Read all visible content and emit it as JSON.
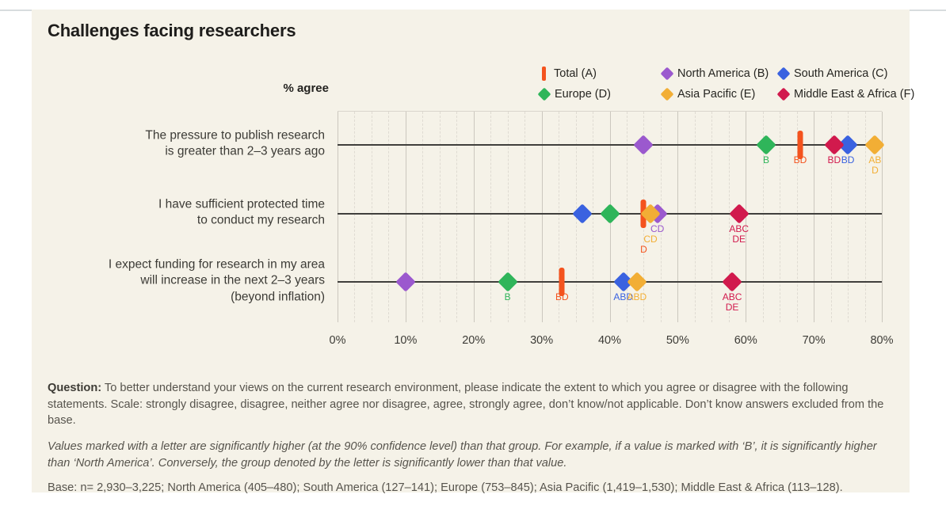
{
  "title": "Challenges facing researchers",
  "axis_label": "% agree",
  "colors": {
    "page_bg": "#ffffff",
    "card_bg": "#f5f2e8",
    "top_rule": "#d8dcde",
    "row_line": "#403f3c",
    "grid_solid": "#cbc7be",
    "grid_dashed": "#dfdbd2",
    "total": "#f4531e",
    "north_america": "#9b59ce",
    "south_america": "#3a62e0",
    "europe": "#2fb55a",
    "asia_pacific": "#f2ae35",
    "middle_east_africa": "#d11a4d"
  },
  "legend": [
    {
      "label": "Total (A)",
      "marker": "bar",
      "color": "#f4531e"
    },
    {
      "label": "North America (B)",
      "marker": "diamond",
      "color": "#9b59ce"
    },
    {
      "label": "South America (C)",
      "marker": "diamond",
      "color": "#3a62e0"
    },
    {
      "label": "Europe (D)",
      "marker": "diamond",
      "color": "#2fb55a"
    },
    {
      "label": "Asia Pacific (E)",
      "marker": "diamond",
      "color": "#f2ae35"
    },
    {
      "label": "Middle East & Africa (F)",
      "marker": "diamond",
      "color": "#d11a4d"
    }
  ],
  "chart_data": {
    "type": "scatter",
    "subtype": "dot-plot",
    "title": "Challenges facing researchers",
    "xlabel": "% agree",
    "xlim": [
      0,
      80
    ],
    "x_ticks": [
      "0%",
      "10%",
      "20%",
      "30%",
      "40%",
      "50%",
      "60%",
      "70%",
      "80%"
    ],
    "grid": "vertical, dashed every 2.5, solid every 10",
    "legend_position": "top-right",
    "categories": [
      "The pressure to publish research\nis greater than 2–3 years ago",
      "I have sufficient protected time\nto conduct my research",
      "I expect funding for research in my area\nwill increase in the next 2–3 years\n(beyond inflation)"
    ],
    "series": [
      {
        "name": "Total (A)",
        "marker": "bar",
        "color": "#f4531e",
        "values": [
          68,
          45,
          33
        ],
        "sig_labels": [
          "BD",
          "D",
          "BD"
        ],
        "sig_dy": [
          0,
          26,
          0
        ]
      },
      {
        "name": "North America (B)",
        "marker": "diamond",
        "color": "#9b59ce",
        "values": [
          45,
          47,
          10
        ],
        "sig_labels": [
          "",
          "CD",
          ""
        ],
        "sig_dy": [
          0,
          0,
          0
        ]
      },
      {
        "name": "South America (C)",
        "marker": "diamond",
        "color": "#3a62e0",
        "values": [
          75,
          36,
          42
        ],
        "sig_labels": [
          "BD",
          "",
          "ABD"
        ],
        "sig_dy": [
          0,
          0,
          0
        ]
      },
      {
        "name": "Europe (D)",
        "marker": "diamond",
        "color": "#2fb55a",
        "values": [
          63,
          40,
          25
        ],
        "sig_labels": [
          "B",
          "",
          "B"
        ],
        "sig_dy": [
          0,
          0,
          0
        ]
      },
      {
        "name": "Asia Pacific (E)",
        "marker": "diamond",
        "color": "#f2ae35",
        "values": [
          79,
          46,
          44
        ],
        "sig_labels": [
          "AB\nD",
          "CD",
          "ABD"
        ],
        "sig_dy": [
          0,
          13,
          0
        ]
      },
      {
        "name": "Middle East & Africa (F)",
        "marker": "diamond",
        "color": "#d11a4d",
        "values": [
          73,
          59,
          58
        ],
        "sig_labels": [
          "BD",
          "ABC\nDE",
          "ABC\nDE"
        ],
        "sig_dy": [
          0,
          0,
          0
        ]
      }
    ]
  },
  "footer": {
    "question_label": "Question:",
    "question_text": " To better understand your views on the current research environment, please indicate the extent to which you agree or disagree with the following statements. Scale: strongly disagree, disagree, neither agree nor disagree, agree, strongly agree, don’t know/not applicable. Don’t know answers excluded from the base.",
    "note": "Values marked with a letter are significantly higher (at the 90% confidence level) than that group. For example, if a value is marked with ‘B’, it is significantly higher than ‘North America’. Conversely, the group denoted by the letter is significantly lower than that value.",
    "base": "Base: n= 2,930–3,225; North America (405–480); South America (127–141); Europe (753–845); Asia Pacific (1,419–1,530); Middle East & Africa (113–128)."
  }
}
